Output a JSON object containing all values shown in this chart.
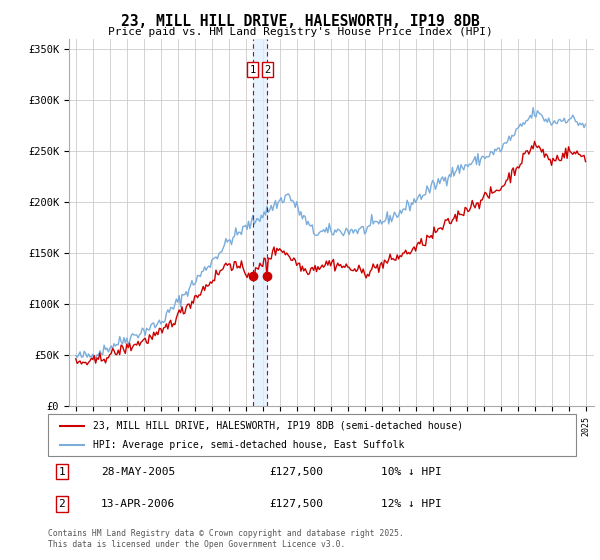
{
  "title": "23, MILL HILL DRIVE, HALESWORTH, IP19 8DB",
  "subtitle": "Price paid vs. HM Land Registry's House Price Index (HPI)",
  "legend_property": "23, MILL HILL DRIVE, HALESWORTH, IP19 8DB (semi-detached house)",
  "legend_hpi": "HPI: Average price, semi-detached house, East Suffolk",
  "property_color": "#cc0000",
  "hpi_color": "#7aaddb",
  "ylim": [
    0,
    360000
  ],
  "yticks": [
    0,
    50000,
    100000,
    150000,
    200000,
    250000,
    300000,
    350000
  ],
  "ytick_labels": [
    "£0",
    "£50K",
    "£100K",
    "£150K",
    "£200K",
    "£250K",
    "£300K",
    "£350K"
  ],
  "sale1_date": 2005.41,
  "sale1_price": 127500,
  "sale1_label": "1",
  "sale2_date": 2006.28,
  "sale2_price": 127500,
  "sale2_label": "2",
  "footer": "Contains HM Land Registry data © Crown copyright and database right 2025.\nThis data is licensed under the Open Government Licence v3.0.",
  "background_color": "#ffffff",
  "grid_color": "#cccccc",
  "shade_color": "#ddeeff"
}
